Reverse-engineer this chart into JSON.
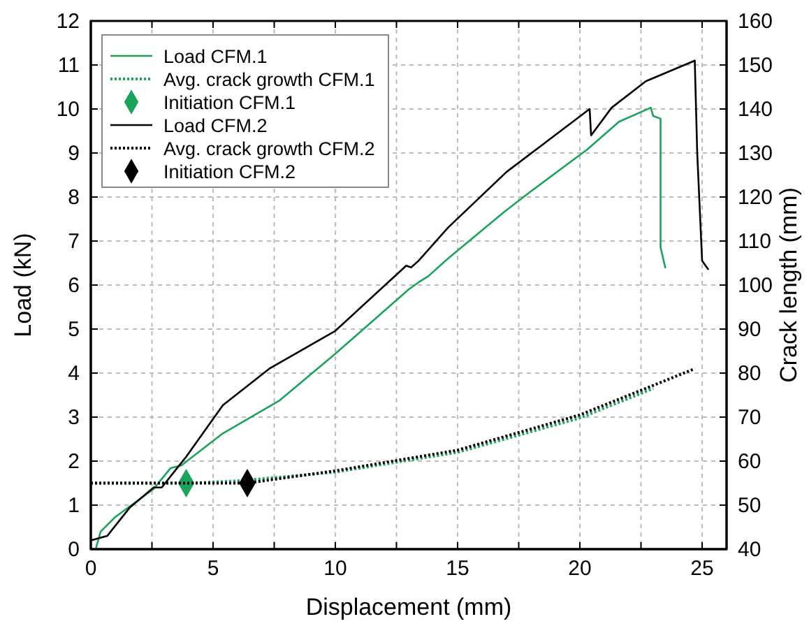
{
  "chart_data": {
    "type": "line",
    "xlabel": "Displacement (mm)",
    "ylabel": "Load (kN)",
    "y2label": "Crack length (mm)",
    "xlim": [
      0,
      26
    ],
    "xticks": [
      0,
      {
        "value": 2.5,
        "label": null
      },
      5,
      {
        "value": 7.5,
        "label": null
      },
      10,
      {
        "value": 12.5,
        "label": null
      },
      15,
      {
        "value": 17.5,
        "label": null
      },
      20,
      {
        "value": 22.5,
        "label": null
      },
      25
    ],
    "ylim": [
      0,
      12
    ],
    "yticks": [
      0,
      1,
      2,
      3,
      4,
      5,
      6,
      7,
      8,
      9,
      10,
      11,
      12
    ],
    "y2lim": [
      40,
      160
    ],
    "y2ticks": [
      40,
      50,
      60,
      70,
      80,
      90,
      100,
      110,
      120,
      130,
      140,
      150,
      160
    ],
    "grid": true,
    "legend": "top left",
    "series": [
      {
        "name": "Load CFM.1",
        "type": "line",
        "color": "#1aa35a",
        "line_style": "solid",
        "marker": "none",
        "x": [
          0.2,
          0.4,
          1.0,
          2.57,
          3.26,
          3.7,
          5.4,
          7.7,
          10,
          13.0,
          13.4,
          13.8,
          14.6,
          16.9,
          18.0,
          20.3,
          21.6,
          22.9,
          23.0,
          23.3,
          23.3,
          23.5
        ],
        "values": [
          0,
          0.4,
          0.73,
          1.37,
          1.84,
          1.9,
          2.63,
          3.37,
          4.44,
          5.9,
          6.06,
          6.2,
          6.6,
          7.66,
          8.13,
          9.08,
          9.71,
          10.03,
          9.84,
          9.78,
          6.86,
          6.38
        ]
      },
      {
        "name": "Avg. crack growth CFM.1",
        "type": "line",
        "axis": "y2",
        "color": "#1aa35a",
        "line_style": "dotted",
        "marker": "none",
        "x": [
          0,
          3.9,
          6,
          10,
          15,
          20,
          23
        ],
        "values": [
          55,
          55,
          55.5,
          57.5,
          62,
          69.8,
          76.5
        ]
      },
      {
        "name": "Initiation CFM.1",
        "type": "scatter",
        "axis": "y2",
        "color": "#1aa35a",
        "marker": "diamond",
        "x": [
          3.9
        ],
        "values": [
          55
        ]
      },
      {
        "name": "Load CFM.2",
        "type": "line",
        "color": "#000000",
        "line_style": "solid",
        "marker": "none",
        "x": [
          0,
          0.67,
          1.6,
          2.57,
          2.9,
          3.9,
          5.4,
          7.3,
          10,
          12.9,
          13.1,
          13.4,
          14.6,
          17.0,
          20.4,
          20.46,
          21.3,
          22.7,
          24.7,
          24.8,
          25.0,
          25.26
        ],
        "values": [
          0.2,
          0.3,
          0.95,
          1.4,
          1.4,
          2.1,
          3.27,
          4.1,
          4.96,
          6.44,
          6.4,
          6.55,
          7.3,
          8.57,
          10.0,
          9.4,
          10.03,
          10.63,
          11.1,
          9.0,
          6.55,
          6.35
        ]
      },
      {
        "name": "Avg. crack growth CFM.2",
        "type": "line",
        "axis": "y2",
        "color": "#000000",
        "line_style": "dotted",
        "marker": "none",
        "x": [
          0,
          6.4,
          10,
          15,
          20,
          24.7
        ],
        "values": [
          55,
          55,
          57.8,
          62.5,
          70.5,
          81
        ]
      },
      {
        "name": "Initiation CFM.2",
        "type": "scatter",
        "axis": "y2",
        "color": "#000000",
        "marker": "diamond",
        "x": [
          6.4
        ],
        "values": [
          55
        ]
      }
    ]
  }
}
